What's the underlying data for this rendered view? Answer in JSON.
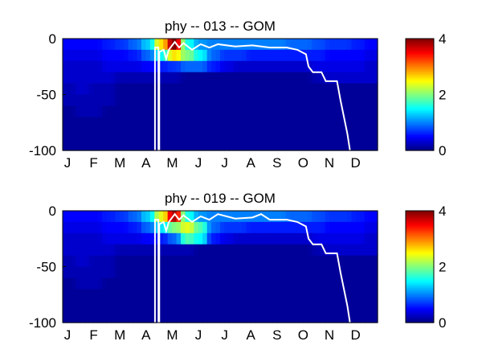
{
  "chart_data": [
    {
      "type": "heatmap",
      "title": "phy -- 013 -- GOM",
      "xlabel": "",
      "ylabel": "",
      "xlim": [
        0,
        365
      ],
      "ylim": [
        -100,
        0
      ],
      "x_tick_labels": [
        "J",
        "F",
        "M",
        "A",
        "M",
        "J",
        "J",
        "A",
        "S",
        "O",
        "N",
        "D"
      ],
      "y_ticks": [
        0,
        -50,
        -100
      ],
      "y_tick_labels": [
        "0",
        "-50",
        "-100"
      ],
      "colorbar": {
        "range": [
          0,
          4
        ],
        "ticks": [
          0,
          2,
          4
        ],
        "tick_labels": [
          "0",
          "2",
          "4"
        ],
        "colormap": "jet"
      },
      "depth_bins": [
        0,
        -10,
        -20,
        -30,
        -40,
        -50,
        -60,
        -70,
        -80,
        -90
      ],
      "grid_half_months": [
        [
          0.5,
          0.5,
          0.5,
          0.6,
          0.7,
          0.9,
          1.3,
          2.6,
          4.0,
          1.6,
          1.1,
          1.0,
          1.0,
          1.0,
          1.0,
          1.0,
          1.0,
          0.9,
          0.9,
          0.8,
          0.7,
          0.7,
          0.6,
          0.5
        ],
        [
          0.4,
          0.4,
          0.4,
          0.5,
          0.5,
          0.6,
          0.9,
          1.5,
          2.6,
          2.0,
          1.5,
          0.9,
          0.7,
          0.7,
          0.6,
          0.6,
          0.6,
          0.6,
          0.6,
          0.6,
          0.5,
          0.5,
          0.5,
          0.4
        ],
        [
          0.3,
          0.3,
          0.3,
          0.4,
          0.4,
          0.4,
          0.5,
          0.6,
          0.7,
          0.9,
          0.9,
          0.6,
          0.4,
          0.3,
          0.3,
          0.3,
          0.3,
          0.3,
          0.3,
          0.4,
          0.4,
          0.4,
          0.4,
          0.3
        ],
        [
          0.3,
          0.3,
          0.3,
          0.3,
          0.2,
          0.2,
          0.2,
          0.2,
          0.2,
          0.1,
          0.1,
          0.1,
          0.1,
          0.1,
          0.1,
          0.1,
          0.1,
          0.1,
          0.1,
          0.2,
          0.3,
          0.3,
          0.3,
          0.3
        ],
        [
          0.2,
          0.3,
          0.2,
          0.2,
          0.1,
          0.1,
          0.1,
          0.1,
          0.1,
          0.1,
          0.1,
          0.1,
          0.1,
          0.1,
          0.1,
          0.1,
          0.1,
          0.1,
          0.1,
          0.1,
          0.1,
          0.1,
          0.1,
          0.1
        ],
        [
          0.2,
          0.2,
          0.2,
          0.2,
          0.1,
          0.1,
          0.1,
          0.1,
          0.1,
          0.1,
          0.1,
          0.1,
          0.1,
          0.1,
          0.1,
          0.1,
          0.1,
          0.1,
          0.1,
          0.1,
          0.1,
          0.1,
          0.1,
          0.1
        ],
        [
          0.1,
          0.2,
          0.2,
          0.1,
          0.1,
          0.1,
          0.1,
          0.1,
          0.1,
          0.1,
          0.1,
          0.1,
          0.1,
          0.1,
          0.1,
          0.1,
          0.1,
          0.1,
          0.1,
          0.1,
          0.1,
          0.1,
          0.1,
          0.1
        ],
        [
          0.1,
          0.1,
          0.1,
          0.1,
          0.1,
          0.1,
          0.1,
          0.1,
          0.1,
          0.1,
          0.1,
          0.1,
          0.1,
          0.1,
          0.1,
          0.1,
          0.1,
          0.1,
          0.1,
          0.1,
          0.1,
          0.1,
          0.1,
          0.1
        ],
        [
          0.1,
          0.1,
          0.1,
          0.1,
          0.1,
          0.1,
          0.1,
          0.1,
          0.1,
          0.1,
          0.1,
          0.1,
          0.1,
          0.1,
          0.1,
          0.1,
          0.1,
          0.1,
          0.1,
          0.1,
          0.1,
          0.1,
          0.1,
          0.1
        ],
        [
          0.1,
          0.1,
          0.1,
          0.1,
          0.1,
          0.1,
          0.1,
          0.1,
          0.1,
          0.1,
          0.1,
          0.1,
          0.1,
          0.1,
          0.1,
          0.1,
          0.1,
          0.1,
          0.1,
          0.1,
          0.1,
          0.1,
          0.1,
          0.1
        ]
      ],
      "mixed_layer_line": [
        [
          107,
          -100
        ],
        [
          107,
          -8
        ],
        [
          111,
          -8
        ],
        [
          111,
          -100
        ],
        [
          112,
          -100
        ],
        [
          112,
          -12
        ],
        [
          117,
          -10
        ],
        [
          120,
          -18
        ],
        [
          123,
          -10
        ],
        [
          130,
          -3
        ],
        [
          135,
          -8
        ],
        [
          140,
          -4
        ],
        [
          150,
          -10
        ],
        [
          160,
          -5
        ],
        [
          170,
          -8
        ],
        [
          180,
          -5
        ],
        [
          200,
          -7
        ],
        [
          220,
          -6
        ],
        [
          240,
          -8
        ],
        [
          260,
          -8
        ],
        [
          272,
          -10
        ],
        [
          282,
          -14
        ],
        [
          285,
          -25
        ],
        [
          290,
          -30
        ],
        [
          300,
          -30
        ],
        [
          305,
          -38
        ],
        [
          318,
          -38
        ],
        [
          322,
          -55
        ],
        [
          326,
          -70
        ],
        [
          330,
          -85
        ],
        [
          333,
          -100
        ]
      ]
    },
    {
      "type": "heatmap",
      "title": "phy -- 019 -- GOM",
      "xlabel": "",
      "ylabel": "",
      "xlim": [
        0,
        365
      ],
      "ylim": [
        -100,
        0
      ],
      "x_tick_labels": [
        "J",
        "F",
        "M",
        "A",
        "M",
        "J",
        "J",
        "A",
        "S",
        "O",
        "N",
        "D"
      ],
      "y_ticks": [
        0,
        -50,
        -100
      ],
      "y_tick_labels": [
        "0",
        "-50",
        "-100"
      ],
      "colorbar": {
        "range": [
          0,
          4
        ],
        "ticks": [
          0,
          2,
          4
        ],
        "tick_labels": [
          "0",
          "2",
          "4"
        ],
        "colormap": "jet"
      },
      "depth_bins": [
        0,
        -10,
        -20,
        -30,
        -40,
        -50,
        -60,
        -70,
        -80,
        -90
      ],
      "grid_half_months": [
        [
          0.5,
          0.5,
          0.5,
          0.6,
          0.7,
          0.9,
          1.3,
          2.4,
          3.8,
          1.6,
          1.1,
          1.0,
          1.0,
          1.0,
          1.0,
          1.0,
          1.0,
          0.9,
          0.9,
          0.8,
          0.7,
          0.7,
          0.6,
          0.5
        ],
        [
          0.4,
          0.4,
          0.4,
          0.5,
          0.5,
          0.6,
          0.9,
          1.4,
          2.0,
          2.4,
          1.8,
          0.9,
          0.7,
          0.7,
          0.6,
          0.6,
          0.6,
          0.6,
          0.6,
          0.6,
          0.5,
          0.5,
          0.5,
          0.4
        ],
        [
          0.3,
          0.3,
          0.3,
          0.4,
          0.4,
          0.4,
          0.5,
          0.6,
          0.9,
          1.8,
          1.5,
          0.6,
          0.4,
          0.3,
          0.3,
          0.3,
          0.3,
          0.3,
          0.3,
          0.4,
          0.4,
          0.4,
          0.4,
          0.3
        ],
        [
          0.3,
          0.3,
          0.3,
          0.3,
          0.2,
          0.2,
          0.2,
          0.2,
          0.2,
          0.2,
          0.1,
          0.1,
          0.1,
          0.1,
          0.1,
          0.1,
          0.1,
          0.1,
          0.1,
          0.2,
          0.3,
          0.3,
          0.3,
          0.3
        ],
        [
          0.2,
          0.3,
          0.2,
          0.2,
          0.1,
          0.1,
          0.1,
          0.1,
          0.1,
          0.1,
          0.1,
          0.1,
          0.1,
          0.1,
          0.1,
          0.1,
          0.1,
          0.1,
          0.1,
          0.1,
          0.1,
          0.1,
          0.1,
          0.1
        ],
        [
          0.2,
          0.2,
          0.2,
          0.2,
          0.1,
          0.1,
          0.1,
          0.1,
          0.1,
          0.1,
          0.1,
          0.1,
          0.1,
          0.1,
          0.1,
          0.1,
          0.1,
          0.1,
          0.1,
          0.1,
          0.1,
          0.1,
          0.1,
          0.1
        ],
        [
          0.1,
          0.2,
          0.2,
          0.1,
          0.1,
          0.1,
          0.1,
          0.1,
          0.1,
          0.1,
          0.1,
          0.1,
          0.1,
          0.1,
          0.1,
          0.1,
          0.1,
          0.1,
          0.1,
          0.1,
          0.1,
          0.1,
          0.1,
          0.1
        ],
        [
          0.1,
          0.1,
          0.1,
          0.1,
          0.1,
          0.1,
          0.1,
          0.1,
          0.1,
          0.1,
          0.1,
          0.1,
          0.1,
          0.1,
          0.1,
          0.1,
          0.1,
          0.1,
          0.1,
          0.1,
          0.1,
          0.1,
          0.1,
          0.1
        ],
        [
          0.1,
          0.1,
          0.1,
          0.1,
          0.1,
          0.1,
          0.1,
          0.1,
          0.1,
          0.1,
          0.1,
          0.1,
          0.1,
          0.1,
          0.1,
          0.1,
          0.1,
          0.1,
          0.1,
          0.1,
          0.1,
          0.1,
          0.1,
          0.1
        ],
        [
          0.1,
          0.1,
          0.1,
          0.1,
          0.1,
          0.1,
          0.1,
          0.1,
          0.1,
          0.1,
          0.1,
          0.1,
          0.1,
          0.1,
          0.1,
          0.1,
          0.1,
          0.1,
          0.1,
          0.1,
          0.1,
          0.1,
          0.1,
          0.1
        ]
      ],
      "mixed_layer_line": [
        [
          107,
          -100
        ],
        [
          107,
          -8
        ],
        [
          111,
          -8
        ],
        [
          111,
          -100
        ],
        [
          112,
          -100
        ],
        [
          112,
          -12
        ],
        [
          117,
          -10
        ],
        [
          120,
          -18
        ],
        [
          123,
          -10
        ],
        [
          130,
          -3
        ],
        [
          135,
          -8
        ],
        [
          140,
          -4
        ],
        [
          150,
          -10
        ],
        [
          160,
          -5
        ],
        [
          170,
          -8
        ],
        [
          180,
          -3
        ],
        [
          200,
          -7
        ],
        [
          220,
          -6
        ],
        [
          230,
          -3
        ],
        [
          240,
          -8
        ],
        [
          260,
          -8
        ],
        [
          272,
          -10
        ],
        [
          282,
          -14
        ],
        [
          285,
          -25
        ],
        [
          290,
          -30
        ],
        [
          300,
          -30
        ],
        [
          305,
          -38
        ],
        [
          318,
          -38
        ],
        [
          322,
          -55
        ],
        [
          326,
          -70
        ],
        [
          330,
          -85
        ],
        [
          333,
          -100
        ]
      ]
    }
  ]
}
